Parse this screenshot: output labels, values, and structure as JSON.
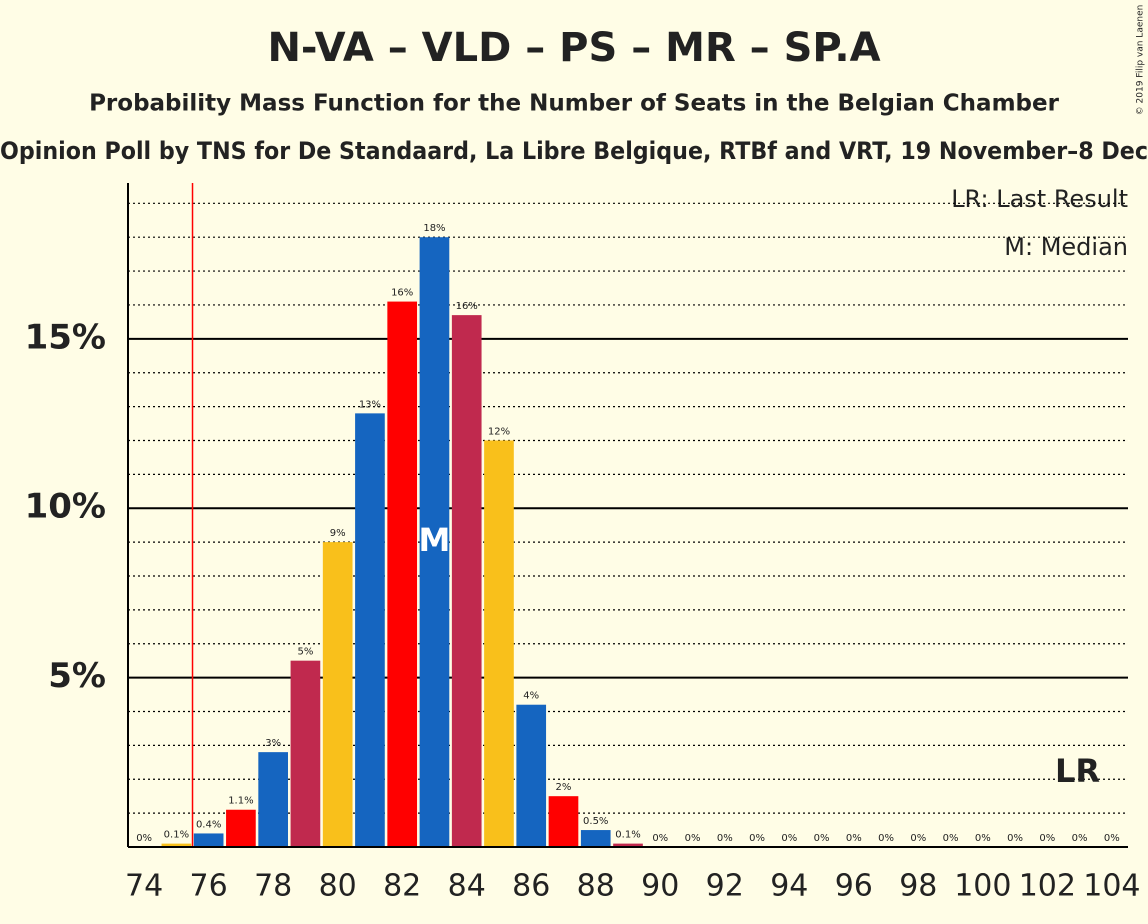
{
  "chart_data": {
    "type": "bar",
    "title": "N-VA – VLD – PS – MR – SP.A",
    "subtitle": "Probability Mass Function for the Number of Seats in the Belgian Chamber",
    "caption": "Opinion Poll by TNS for De Standaard, La Libre Belgique, RTBf and VRT, 19 November–8 Dec",
    "copyright": "© 2019 Filip van Laenen",
    "x": [
      74,
      75,
      76,
      77,
      78,
      79,
      80,
      81,
      82,
      83,
      84,
      85,
      86,
      87,
      88,
      89,
      90,
      91,
      92,
      93,
      94,
      95,
      96,
      97,
      98,
      99,
      100,
      101,
      102,
      103,
      104
    ],
    "values": [
      0,
      0.1,
      0.4,
      1.1,
      2.8,
      5.5,
      9.0,
      12.8,
      16.1,
      18.0,
      15.7,
      12.0,
      4.2,
      1.5,
      0.5,
      0.1,
      0,
      0,
      0,
      0,
      0,
      0,
      0,
      0,
      0,
      0,
      0,
      0,
      0,
      0,
      0
    ],
    "value_labels": [
      "0%",
      "0.1%",
      "0.4%",
      "1.1%",
      "3%",
      "5%",
      "9%",
      "13%",
      "16%",
      "18%",
      "16%",
      "12%",
      "4%",
      "2%",
      "0.5%",
      "0.1%",
      "0%",
      "0%",
      "0%",
      "0%",
      "0%",
      "0%",
      "0%",
      "0%",
      "0%",
      "0%",
      "0%",
      "0%",
      "0%",
      "0%",
      "0%"
    ],
    "colors": [
      "#c1272d",
      "#f9c01b",
      "#1565c0",
      "#ff0000",
      "#1565c0",
      "#c0294e",
      "#f9c01b",
      "#1565c0",
      "#ff0000",
      "#1565c0",
      "#c0294e",
      "#f9c01b",
      "#1565c0",
      "#ff0000",
      "#1565c0",
      "#c0294e",
      "#f9c01b",
      "#1565c0",
      "#ff0000",
      "#1565c0",
      "#c0294e",
      "#f9c01b",
      "#1565c0",
      "#ff0000",
      "#1565c0",
      "#c0294e",
      "#f9c01b",
      "#1565c0",
      "#ff0000",
      "#1565c0",
      "#c0294e"
    ],
    "xlim": [
      73.5,
      104.5
    ],
    "xticks": [
      74,
      76,
      78,
      80,
      82,
      84,
      86,
      88,
      90,
      92,
      94,
      96,
      98,
      100,
      102,
      104
    ],
    "ylim": [
      0,
      19.6
    ],
    "yticks": [
      {
        "value": 5,
        "label": "5%"
      },
      {
        "value": 10,
        "label": "10%"
      },
      {
        "value": 15,
        "label": "15%"
      }
    ],
    "minor_yticks": [
      1,
      2,
      3,
      4,
      6,
      7,
      8,
      9,
      11,
      12,
      13,
      14,
      16,
      17,
      18,
      19
    ],
    "median": 83,
    "median_label": "M",
    "last_result": 76,
    "last_result_label": "LR",
    "legend": [
      "LR: Last Result",
      "M: Median"
    ]
  }
}
